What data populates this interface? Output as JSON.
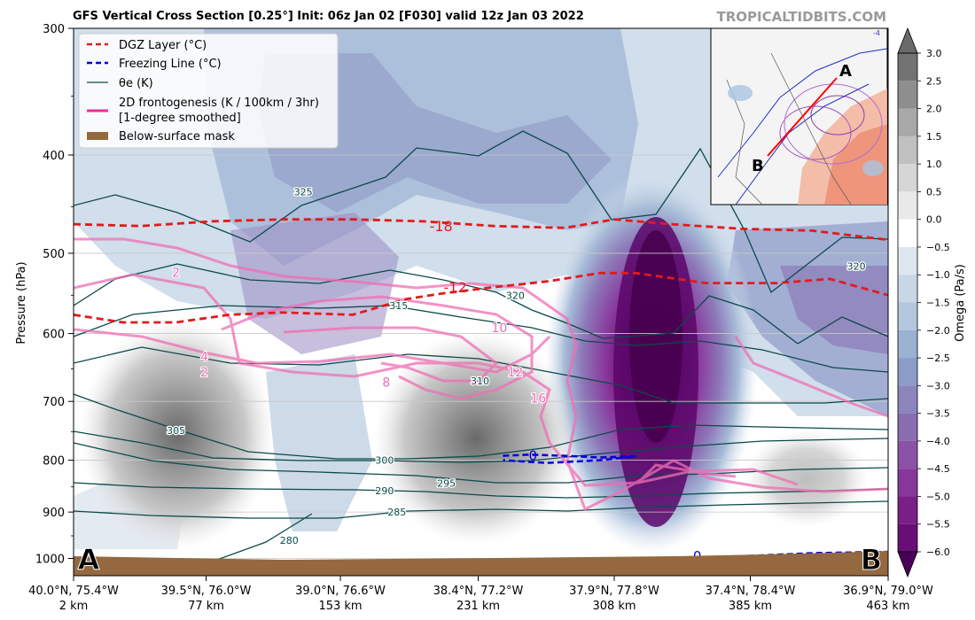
{
  "header": {
    "title": "GFS Vertical Cross Section [0.25°] Init: 06z Jan 02 [F030] valid 12z Jan 03 2022",
    "watermark": "TROPICALTIDBITS.COM"
  },
  "colors": {
    "dgz": "#e31a1c",
    "freezing": "#0000dd",
    "theta_e": "#0b4a4a",
    "frontogenesis": "#f06eb4",
    "below_surface": "#94693f",
    "omega_neg": [
      "#dde6ef",
      "#c8d7e6",
      "#b2c6dd",
      "#9bb1d2",
      "#8b9cc8",
      "#8a85bd",
      "#8a6cb1",
      "#8a52a6",
      "#87369a",
      "#7a1e88",
      "#690e76",
      "#560563"
    ],
    "omega_pos": [
      "#e9e9e9",
      "#d6d6d6",
      "#c0c0c0",
      "#a8a8a8",
      "#8e8e8e",
      "#737373"
    ]
  },
  "chart_data": {
    "type": "heatmap",
    "title": "GFS Vertical Cross Section [0.25°] Init: 06z Jan 02 [F030] valid 12z Jan 03 2022",
    "ylabel": "Pressure (hPa)",
    "xlabel": "",
    "y_scale": "log",
    "ylim": [
      1040,
      300
    ],
    "y_ticks": [
      300,
      400,
      500,
      600,
      700,
      800,
      900,
      1000
    ],
    "x_ticks": [
      {
        "coord": "40.0°N, 75.4°W",
        "dist": "2 km",
        "km": 2
      },
      {
        "coord": "39.5°N, 76.0°W",
        "dist": "77 km",
        "km": 77
      },
      {
        "coord": "39.0°N, 76.6°W",
        "dist": "153 km",
        "km": 153
      },
      {
        "coord": "38.4°N, 77.2°W",
        "dist": "231 km",
        "km": 231
      },
      {
        "coord": "37.9°N, 77.8°W",
        "dist": "308 km",
        "km": 308
      },
      {
        "coord": "37.4°N, 78.4°W",
        "dist": "385 km",
        "km": 385
      },
      {
        "coord": "36.9°N, 79.0°W",
        "dist": "463 km",
        "km": 463
      }
    ],
    "section_ends": {
      "start": "A",
      "end": "B"
    },
    "legend": {
      "position": "upper-left",
      "entries": [
        {
          "label": "DGZ Layer (°C)",
          "style": "dashed",
          "color_key": "dgz"
        },
        {
          "label": "Freezing Line (°C)",
          "style": "dashed",
          "color_key": "freezing"
        },
        {
          "label": "θe (K)",
          "style": "solid-thin",
          "color_key": "theta_e"
        },
        {
          "label": "2D frontogenesis (K / 100km / 3hr)",
          "label2": "[1-degree smoothed]",
          "style": "solid-thick",
          "color_key": "frontogenesis"
        },
        {
          "label": "Below-surface mask",
          "style": "patch",
          "color_key": "below_surface"
        }
      ]
    },
    "colorbar": {
      "label": "Omega (Pa/s)",
      "ticks": [
        "3.0",
        "2.5",
        "2.0",
        "1.5",
        "1.0",
        "0.5",
        "0.0",
        "−0.5",
        "−1.0",
        "−1.5",
        "−2.0",
        "−2.5",
        "−3.0",
        "−3.5",
        "−4.0",
        "−4.5",
        "−5.0",
        "−5.5",
        "−6.0"
      ],
      "range": [
        -6.0,
        3.0
      ]
    },
    "dgz_lines": [
      {
        "label": "-18",
        "km": [
          2,
          40,
          80,
          120,
          160,
          200,
          240,
          280,
          308,
          340,
          380,
          420,
          463
        ],
        "p": [
          468,
          470,
          465,
          463,
          463,
          465,
          470,
          472,
          463,
          468,
          473,
          475,
          485
        ]
      },
      {
        "label": "-12",
        "km": [
          2,
          30,
          60,
          90,
          120,
          160,
          190,
          210,
          240,
          270,
          300,
          320,
          360,
          400,
          430,
          463
        ],
        "p": [
          575,
          585,
          585,
          575,
          572,
          575,
          555,
          548,
          540,
          533,
          523,
          523,
          535,
          535,
          530,
          550
        ]
      }
    ],
    "freezing_lines": [
      {
        "label": "0",
        "km": [
          245,
          260,
          280,
          300,
          320,
          300,
          270,
          245
        ],
        "p": [
          792,
          790,
          792,
          795,
          793,
          800,
          805,
          800
        ]
      },
      {
        "label": "0",
        "km": [
          345,
          380,
          420,
          463
        ],
        "p": [
          1000,
          995,
          988,
          985
        ]
      }
    ],
    "theta_e_labels": [
      {
        "text": "325",
        "km": 132,
        "p": 435
      },
      {
        "text": "320",
        "km": 445,
        "p": 515
      },
      {
        "text": "320",
        "km": 252,
        "p": 550
      },
      {
        "text": "315",
        "km": 186,
        "p": 563
      },
      {
        "text": "310",
        "km": 232,
        "p": 668
      },
      {
        "text": "305",
        "km": 60,
        "p": 748
      },
      {
        "text": "300",
        "km": 178,
        "p": 800
      },
      {
        "text": "295",
        "km": 213,
        "p": 843
      },
      {
        "text": "290",
        "km": 178,
        "p": 857
      },
      {
        "text": "285",
        "km": 185,
        "p": 900
      },
      {
        "text": "280",
        "km": 124,
        "p": 960
      }
    ],
    "frontogenesis_labels": [
      {
        "text": "2",
        "km": 60,
        "p": 522
      },
      {
        "text": "4",
        "km": 76,
        "p": 632
      },
      {
        "text": "2",
        "km": 76,
        "p": 655
      },
      {
        "text": "10",
        "km": 243,
        "p": 592
      },
      {
        "text": "12",
        "km": 252,
        "p": 655
      },
      {
        "text": "8",
        "km": 179,
        "p": 670
      },
      {
        "text": "16",
        "km": 265,
        "p": 695
      }
    ],
    "omega_centers": [
      {
        "km": 340,
        "p": 630,
        "value": -6.0,
        "rx_km": 20,
        "p_top": 455,
        "p_bot": 850
      },
      {
        "km": 238,
        "p": 745,
        "value": 2.5,
        "rx_km": 55,
        "p_top": 640,
        "p_bot": 880
      },
      {
        "km": 72,
        "p": 760,
        "value": 2.0,
        "rx_km": 45,
        "p_top": 620,
        "p_bot": 880
      },
      {
        "km": 420,
        "p": 830,
        "value": 1.0,
        "rx_km": 20,
        "p_top": 775,
        "p_bot": 900
      }
    ]
  },
  "inset_map": {
    "label_a": "A",
    "label_b": "B",
    "contour_label": "-4"
  }
}
